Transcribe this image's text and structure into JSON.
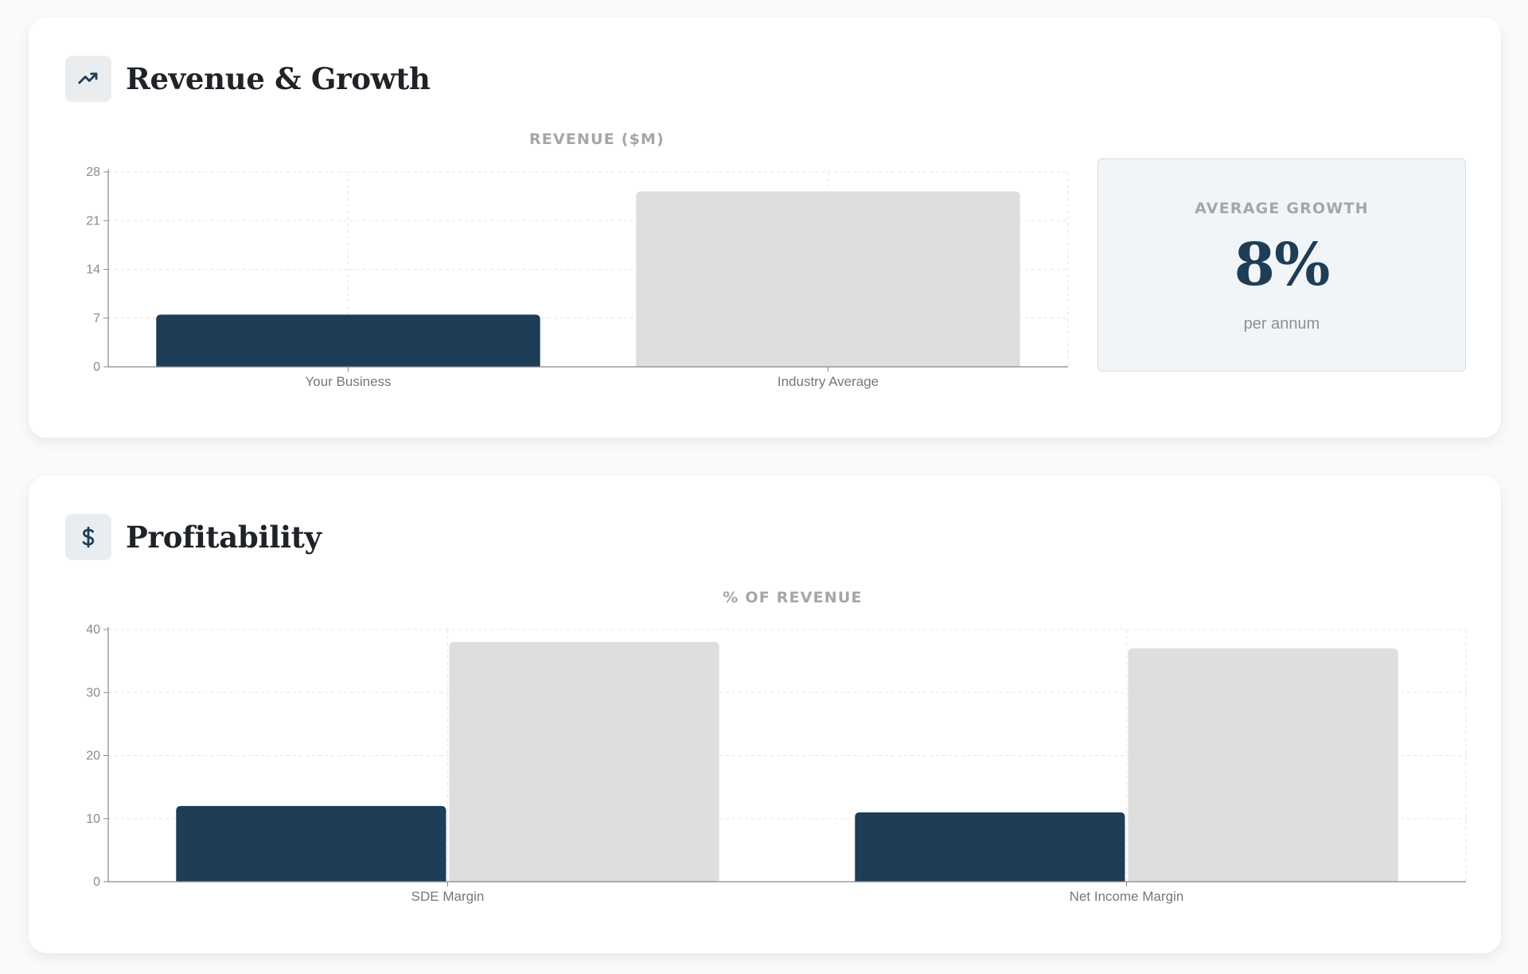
{
  "colors": {
    "primary": "#1e3d57",
    "secondary": "#dedede",
    "grid": "#e6e6e6",
    "axis": "#888888"
  },
  "revenue_section": {
    "title": "Revenue & Growth",
    "icon": "trending-up-icon",
    "chart_title": "REVENUE ($M)",
    "growth": {
      "label": "AVERAGE GROWTH",
      "value": "8%",
      "sub": "per annum"
    }
  },
  "profit_section": {
    "title": "Profitability",
    "icon": "dollar-icon",
    "chart_title": "% OF REVENUE"
  },
  "chart_data": [
    {
      "type": "bar",
      "title": "REVENUE ($M)",
      "categories": [
        "Your Business",
        "Industry Average"
      ],
      "values": [
        7.5,
        25.2
      ],
      "ylim": [
        0,
        28
      ],
      "yticks": [
        0,
        7,
        14,
        21,
        28
      ],
      "grid": true
    },
    {
      "type": "bar",
      "title": "% OF REVENUE",
      "categories": [
        "SDE Margin",
        "Net Income Margin"
      ],
      "series": [
        {
          "values": [
            12,
            11
          ]
        },
        {
          "values": [
            38,
            37
          ]
        }
      ],
      "ylim": [
        0,
        40
      ],
      "yticks": [
        0,
        10,
        20,
        30,
        40
      ],
      "grid": true
    }
  ]
}
